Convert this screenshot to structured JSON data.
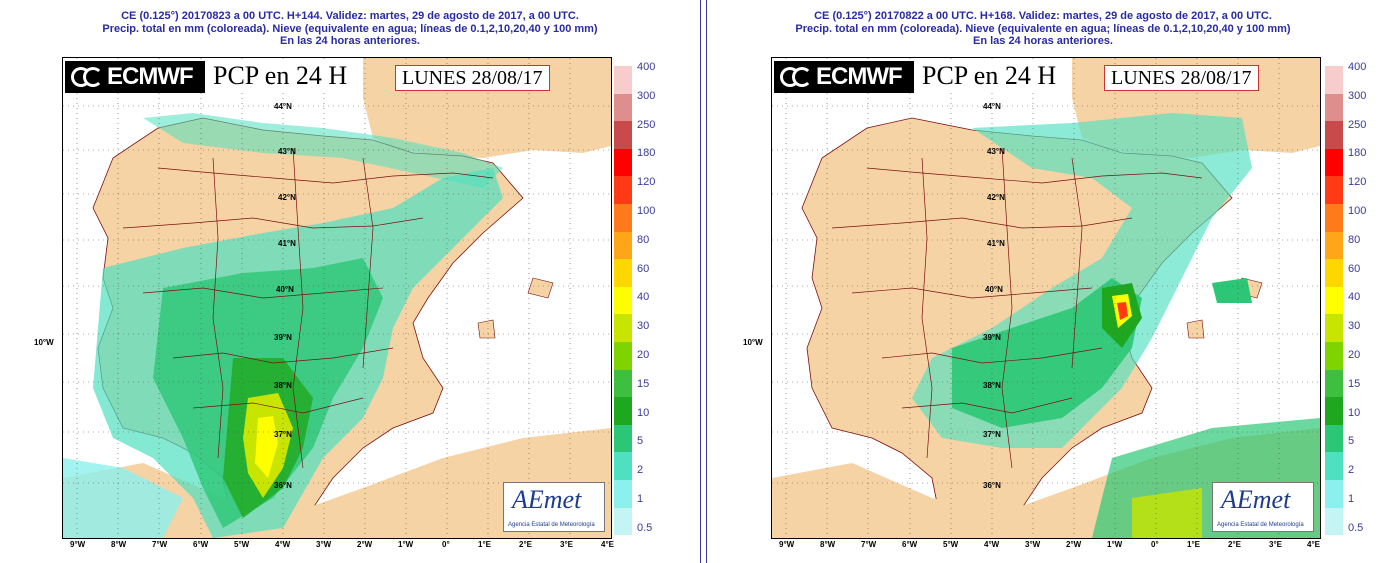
{
  "legend": {
    "labels": [
      "400",
      "300",
      "250",
      "180",
      "120",
      "100",
      "80",
      "60",
      "40",
      "30",
      "20",
      "15",
      "10",
      "5",
      "2",
      "1",
      "0.5"
    ],
    "colors": [
      "#f6cccc",
      "#df8e8e",
      "#c94a4a",
      "#ff0000",
      "#ff3a14",
      "#ff7a1a",
      "#ffa51a",
      "#ffd700",
      "#ffff00",
      "#c7e500",
      "#7fd400",
      "#3fbf3f",
      "#1fa81f",
      "#2cc776",
      "#4ee0c0",
      "#8cf0ee",
      "#c4f4f4"
    ]
  },
  "colors": {
    "land": "#f6d3a4",
    "sea": "#ffffff",
    "border": "#7a1010",
    "header_text": "#2a2aa6"
  },
  "axes": {
    "lon_labels": [
      "9°W",
      "8°W",
      "7°W",
      "6°W",
      "5°W",
      "4°W",
      "3°W",
      "2°W",
      "1°W",
      "0°",
      "1°E",
      "2°E",
      "3°E",
      "4°E"
    ],
    "lat_labels": [
      "44°N",
      "43°N",
      "42°N",
      "41°N",
      "40°N",
      "39°N",
      "38°N",
      "37°N",
      "36°N"
    ],
    "side_label": "10°W"
  },
  "left": {
    "header_line1": "CE (0.125°) 20170823 a 00 UTC.  H+144. Validez: martes, 29 de agosto de 2017,  a  00 UTC.",
    "header_line2": "Precip. total en mm (coloreada). Nieve (equivalente en agua; líneas de 0.1,2,10,20,40 y 100 mm)",
    "header_line3": "En las 24 horas anteriores.",
    "logo": "ECMWF",
    "product": "PCP  en 24 H",
    "date": "LUNES 28/08/17",
    "aemet": "AEmet",
    "aemet_sub": "Agencia Estatal de Meteorología"
  },
  "right": {
    "header_line1": "CE (0.125°) 20170822 a 00 UTC.  H+168. Validez: martes, 29 de agosto de 2017,  a  00 UTC.",
    "header_line2": "Precip. total en mm (coloreada). Nieve (equivalente en agua; líneas de 0.1,2,10,20,40 y 100 mm)",
    "header_line3": "En las 24 horas anteriores.",
    "logo": "ECMWF",
    "product": "PCP  en 24 H",
    "date": "LUNES 28/08/17",
    "aemet": "AEmet",
    "aemet_sub": "Agencia Estatal de Meteorología"
  }
}
